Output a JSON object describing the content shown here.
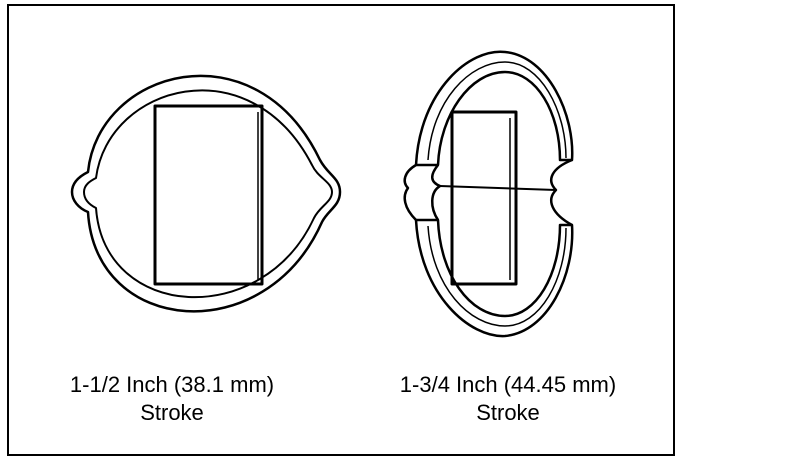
{
  "figures": [
    {
      "label_line1": "1-1/2 Inch (38.1 mm)",
      "label_line2": "Stroke"
    },
    {
      "label_line1": "1-3/4 Inch (44.45 mm)",
      "label_line2": "Stroke"
    }
  ],
  "colors": {
    "line": "#000000",
    "background": "#ffffff"
  }
}
